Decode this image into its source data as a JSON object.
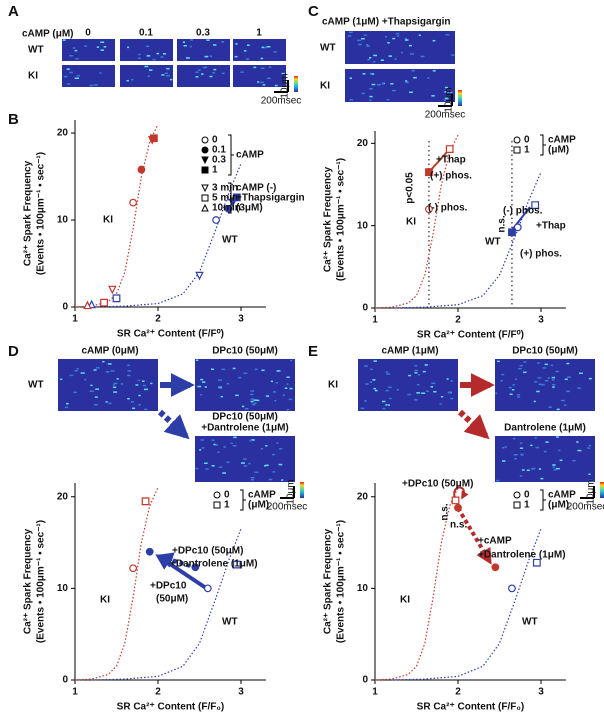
{
  "panel_a": {
    "label": "A",
    "conc_title": "cAMP (μM)",
    "concs": [
      "0",
      "0.1",
      "0.3",
      "1"
    ],
    "rows": [
      "WT",
      "KI"
    ],
    "scale_y": "10μm",
    "scale_x": "200msec"
  },
  "panel_b": {
    "label": "B"
  },
  "panel_c": {
    "label": "C",
    "title": "cAMP (1μM) +Thapsigargin",
    "rows": [
      "WT",
      "KI"
    ],
    "scale_y": "10μm",
    "scale_x": "200msec"
  },
  "panel_d": {
    "label": "D",
    "row": "WT",
    "start": "cAMP (0μM)",
    "target1": "DPc10 (50μM)",
    "target2": [
      "DPc10 (50μM)",
      "+Dantrolene (1μM)"
    ],
    "scale_y": "10μm",
    "scale_x": "200msec"
  },
  "panel_e": {
    "label": "E",
    "row": "KI",
    "start": "cAMP (1μM)",
    "target1": "DPc10 (50μM)",
    "target2": [
      "Dantrolene (1μM)"
    ],
    "scale_y": "10μm",
    "scale_x": "200msec"
  },
  "chart_data": [
    {
      "type": "scatter",
      "ylabel": [
        "Ca²⁺ Spark Frequency",
        "(Events • 100μm⁻¹ • sec⁻¹)"
      ],
      "xlabel": "SR Ca²⁺ Content (F/F⁰)",
      "xlim": [
        1,
        3.3
      ],
      "xticks": [
        1,
        2,
        3
      ],
      "ylim": [
        0,
        21.5
      ],
      "yticks": [
        0,
        10,
        20
      ],
      "curves": [
        {
          "label": "KI",
          "color": "#c0392b",
          "x": [
            1.0,
            1.2,
            1.4,
            1.5,
            1.6,
            1.7,
            1.8,
            1.9,
            2.0
          ],
          "values": [
            0,
            0.1,
            0.6,
            1.5,
            4,
            9,
            15,
            19,
            21
          ]
        },
        {
          "label": "WT",
          "color": "#2e3ea8",
          "x": [
            1.2,
            1.6,
            2.0,
            2.3,
            2.5,
            2.7,
            2.85,
            3.0
          ],
          "values": [
            0,
            0.1,
            0.4,
            1.5,
            4,
            9,
            13,
            16.5
          ]
        }
      ],
      "groups": [
        {
          "label": [
            "cAMP"
          ],
          "series": [
            {
              "name": "0",
              "marker": "circle",
              "filled": false,
              "colors": [
                "#2e3ea8",
                "#c0392b"
              ],
              "x": [
                2.7,
                1.7
              ],
              "values": [
                10,
                12
              ]
            },
            {
              "name": "0.1",
              "marker": "circle",
              "filled": true,
              "colors": [
                "#2e3ea8",
                "#c0392b"
              ],
              "x": [
                2.85,
                1.8
              ],
              "values": [
                11.3,
                15.8
              ]
            },
            {
              "name": "0.3",
              "marker": "triangle-down",
              "filled": true,
              "colors": [
                "#2e3ea8",
                "#c0392b"
              ],
              "x": [
                2.9,
                1.93
              ],
              "values": [
                12,
                19.2
              ]
            },
            {
              "name": "1",
              "marker": "square",
              "filled": true,
              "colors": [
                "#2e3ea8",
                "#c0392b"
              ],
              "x": [
                2.95,
                1.95
              ],
              "values": [
                12.6,
                19.4
              ]
            }
          ]
        },
        {
          "label": [
            "cAMP (-)",
            "+Thapsigargin",
            "(3μM)"
          ],
          "series": [
            {
              "name": "3 min",
              "marker": "triangle-down",
              "filled": false,
              "colors": [
                "#2e3ea8",
                "#c0392b"
              ],
              "x": [
                2.5,
                1.45
              ],
              "values": [
                3.6,
                2
              ]
            },
            {
              "name": "5 min",
              "marker": "square",
              "filled": false,
              "colors": [
                "#2e3ea8",
                "#c0392b"
              ],
              "x": [
                1.5,
                1.35
              ],
              "values": [
                1,
                0.5
              ]
            },
            {
              "name": "10min",
              "marker": "triangle-up",
              "filled": false,
              "colors": [
                "#2e3ea8",
                "#c0392b"
              ],
              "x": [
                1.2,
                1.15
              ],
              "values": [
                0.3,
                0.2
              ]
            }
          ]
        }
      ],
      "annotations": []
    },
    {
      "type": "scatter",
      "ylabel": [
        "Ca²⁺ Spark Frequency",
        "(Events • 100μm⁻¹ • sec⁻¹)"
      ],
      "xlabel": "SR Ca²⁺ Content (F/F⁰)",
      "xlim": [
        1,
        3.3
      ],
      "xticks": [
        1,
        2,
        3
      ],
      "ylim": [
        0,
        21.5
      ],
      "yticks": [
        0,
        10,
        20
      ],
      "vlines": [
        1.65,
        2.65
      ],
      "curves": [
        {
          "label": "KI",
          "color": "#c0392b",
          "x": [
            1.0,
            1.2,
            1.4,
            1.5,
            1.6,
            1.7,
            1.8,
            1.9,
            2.0
          ],
          "values": [
            0,
            0.1,
            0.6,
            1.5,
            4,
            9,
            15,
            19,
            21
          ]
        },
        {
          "label": "WT",
          "color": "#2e3ea8",
          "x": [
            1.2,
            1.6,
            2.0,
            2.3,
            2.5,
            2.7,
            2.85,
            3.0
          ],
          "values": [
            0,
            0.1,
            0.4,
            1.5,
            4,
            9,
            13,
            16.5
          ]
        }
      ],
      "groups": [
        {
          "label": [
            "cAMP",
            "(μM)"
          ],
          "series": [
            {
              "name": "0",
              "marker": "circle",
              "filled": false,
              "colors": [
                "#2e3ea8",
                "#c0392b"
              ],
              "x": [
                2.72,
                1.65
              ],
              "values": [
                9.8,
                12
              ]
            },
            {
              "name": "1",
              "marker": "square",
              "filled": false,
              "colors": [
                "#2e3ea8",
                "#c0392b"
              ],
              "x": [
                2.93,
                1.9
              ],
              "values": [
                12.5,
                19.3
              ]
            }
          ]
        },
        {
          "series": [
            {
              "marker": "square",
              "filled": true,
              "colors": [
                "#2e3ea8",
                "#c0392b"
              ],
              "x": [
                2.65,
                1.65
              ],
              "values": [
                9.2,
                16.5
              ]
            }
          ]
        }
      ],
      "annotations": [
        "+Thap",
        "(+) phos.",
        "p<0.05",
        "(-) phos.",
        "(-) phos.",
        "n.s.",
        "+Thap",
        "(+) phos."
      ]
    },
    {
      "type": "scatter",
      "ylabel": [
        "Ca²⁺ Spark Frequency",
        "(Events • 100μm⁻¹ • sec⁻¹)"
      ],
      "xlabel": "SR Ca²⁺ Content (F/F₀)",
      "xlim": [
        1,
        3.3
      ],
      "xticks": [
        1,
        2,
        3
      ],
      "ylim": [
        0,
        21.5
      ],
      "yticks": [
        0,
        10,
        20
      ],
      "curves": [
        {
          "label": "KI",
          "color": "#c0392b",
          "x": [
            1.0,
            1.2,
            1.4,
            1.5,
            1.6,
            1.7,
            1.8,
            1.9,
            2.0
          ],
          "values": [
            0,
            0.1,
            0.6,
            1.5,
            4,
            9,
            15,
            19,
            21
          ]
        },
        {
          "label": "WT",
          "color": "#2e3ea8",
          "x": [
            1.2,
            1.6,
            2.0,
            2.3,
            2.5,
            2.7,
            2.85,
            3.0
          ],
          "values": [
            0,
            0.1,
            0.4,
            1.5,
            4,
            9,
            13,
            16.5
          ]
        }
      ],
      "groups": [
        {
          "label": [
            "cAMP",
            "(μM)"
          ],
          "series": [
            {
              "name": "0",
              "marker": "circle",
              "filled": false,
              "colors": [
                "#2e3ea8",
                "#c0392b"
              ],
              "x": [
                2.6,
                1.7
              ],
              "values": [
                10,
                12.2
              ]
            },
            {
              "name": "1",
              "marker": "square",
              "filled": false,
              "colors": [
                "#2e3ea8",
                "#c0392b"
              ],
              "x": [
                2.95,
                1.85
              ],
              "values": [
                12.6,
                19.5
              ]
            }
          ]
        },
        {
          "series": [
            {
              "marker": "circle",
              "filled": true,
              "colors": [
                "#2e3ea8",
                "#2e3ea8"
              ],
              "x": [
                1.9,
                2.45
              ],
              "values": [
                14,
                12.3
              ]
            }
          ]
        }
      ],
      "annotations": [
        "+DPc10 (50μM)",
        "+Dantrolene (1μM)",
        "+DPc10",
        "(50μM)"
      ]
    },
    {
      "type": "scatter",
      "ylabel": [
        "Ca²⁺ Spark Frequency",
        "(Events • 100μm⁻¹ • sec⁻¹)"
      ],
      "xlabel": "SR Ca²⁺ Content (F/F₀)",
      "xlim": [
        1,
        3.3
      ],
      "xticks": [
        1,
        2,
        3
      ],
      "ylim": [
        0,
        21.5
      ],
      "yticks": [
        0,
        10,
        20
      ],
      "curves": [
        {
          "label": "KI",
          "color": "#c0392b",
          "x": [
            1.0,
            1.2,
            1.4,
            1.5,
            1.6,
            1.7,
            1.8,
            1.9,
            2.0
          ],
          "values": [
            0,
            0.1,
            0.6,
            1.5,
            4,
            9,
            15,
            19,
            21
          ]
        },
        {
          "label": "WT",
          "color": "#2e3ea8",
          "x": [
            1.2,
            1.6,
            2.0,
            2.3,
            2.5,
            2.7,
            2.85,
            3.0
          ],
          "values": [
            0,
            0.1,
            0.4,
            1.5,
            4,
            9,
            13,
            16.5
          ]
        }
      ],
      "groups": [
        {
          "label": [
            "cAMP",
            "(μM)"
          ],
          "series": [
            {
              "name": "0",
              "marker": "circle",
              "filled": false,
              "colors": [
                "#2e3ea8"
              ],
              "x": [
                2.65
              ],
              "values": [
                10
              ]
            },
            {
              "name": "1",
              "marker": "square",
              "filled": false,
              "colors": [
                "#2e3ea8",
                "#c0392b"
              ],
              "x": [
                2.95,
                1.97
              ],
              "values": [
                12.8,
                19.6
              ]
            }
          ]
        },
        {
          "series": [
            {
              "marker": "circle",
              "filled": true,
              "colors": [
                "#c0392b",
                "#c0392b"
              ],
              "x": [
                2.0,
                2.45
              ],
              "values": [
                18.8,
                12.3
              ]
            }
          ]
        }
      ],
      "annotations": [
        "+DPc10 (50μM)",
        "n.s.",
        "n.s.",
        "+cAMP",
        "+Dantrolene (1μM)"
      ]
    }
  ]
}
